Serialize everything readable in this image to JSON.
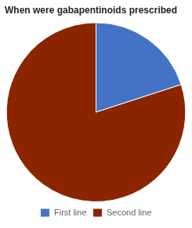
{
  "chart_data": {
    "type": "pie",
    "title": "When were gabapentinoids prescribed",
    "categories": [
      "First line",
      "Second line"
    ],
    "values": [
      20,
      80
    ],
    "colors": [
      "#4472c4",
      "#8b2500"
    ],
    "legend": "bottom"
  }
}
